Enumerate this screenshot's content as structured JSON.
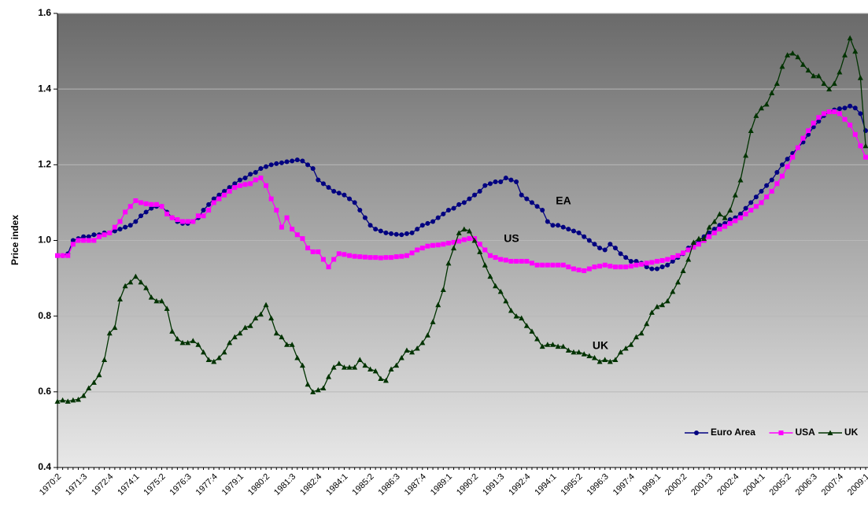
{
  "chart_data": {
    "type": "line",
    "y_label": "Price index",
    "annotations": [
      "EA",
      "US",
      "UK"
    ],
    "categories": [
      "1970:2",
      null,
      null,
      null,
      null,
      "1971:3",
      null,
      null,
      null,
      null,
      "1972:4",
      null,
      null,
      null,
      null,
      "1974:1",
      null,
      null,
      null,
      null,
      "1975:2",
      null,
      null,
      null,
      null,
      "1976:3",
      null,
      null,
      null,
      null,
      "1977:4",
      null,
      null,
      null,
      null,
      "1979:1",
      null,
      null,
      null,
      null,
      "1980:2",
      null,
      null,
      null,
      null,
      "1981:3",
      null,
      null,
      null,
      null,
      "1982:4",
      null,
      null,
      null,
      null,
      "1984:1",
      null,
      null,
      null,
      null,
      "1985:2",
      null,
      null,
      null,
      null,
      "1986:3",
      null,
      null,
      null,
      null,
      "1987:4",
      null,
      null,
      null,
      null,
      "1989:1",
      null,
      null,
      null,
      null,
      "1990:2",
      null,
      null,
      null,
      null,
      "1991:3",
      null,
      null,
      null,
      null,
      "1992:4",
      null,
      null,
      null,
      null,
      "1994:1",
      null,
      null,
      null,
      null,
      "1995:2",
      null,
      null,
      null,
      null,
      "1996:3",
      null,
      null,
      null,
      null,
      "1997:4",
      null,
      null,
      null,
      null,
      "1999:1",
      null,
      null,
      null,
      null,
      "2000:2",
      null,
      null,
      null,
      null,
      "2001:3",
      null,
      null,
      null,
      null,
      "2002:4",
      null,
      null,
      null,
      null,
      "2004:1",
      null,
      null,
      null,
      null,
      "2005:2",
      null,
      null,
      null,
      null,
      "2006:3",
      null,
      null,
      null,
      null,
      "2007:4",
      null,
      null,
      null,
      null,
      "2009:1"
    ],
    "series": [
      {
        "name": "Euro Area",
        "color": "#000080",
        "marker": "circle",
        "values": [
          0.96,
          0.96,
          0.965,
          1.0,
          1.005,
          1.01,
          1.01,
          1.015,
          1.015,
          1.02,
          1.02,
          1.025,
          1.03,
          1.035,
          1.04,
          1.05,
          1.065,
          1.075,
          1.085,
          1.09,
          1.09,
          1.075,
          1.06,
          1.05,
          1.045,
          1.045,
          1.05,
          1.06,
          1.08,
          1.095,
          1.11,
          1.12,
          1.13,
          1.14,
          1.15,
          1.16,
          1.165,
          1.175,
          1.18,
          1.19,
          1.195,
          1.2,
          1.203,
          1.205,
          1.208,
          1.21,
          1.213,
          1.21,
          1.2,
          1.19,
          1.16,
          1.15,
          1.14,
          1.13,
          1.125,
          1.12,
          1.11,
          1.1,
          1.08,
          1.06,
          1.04,
          1.03,
          1.025,
          1.02,
          1.018,
          1.016,
          1.015,
          1.018,
          1.02,
          1.03,
          1.04,
          1.045,
          1.05,
          1.06,
          1.07,
          1.08,
          1.085,
          1.095,
          1.1,
          1.11,
          1.12,
          1.13,
          1.145,
          1.15,
          1.155,
          1.155,
          1.165,
          1.16,
          1.155,
          1.12,
          1.11,
          1.1,
          1.09,
          1.08,
          1.05,
          1.04,
          1.04,
          1.035,
          1.03,
          1.025,
          1.02,
          1.01,
          1.0,
          0.99,
          0.98,
          0.975,
          0.99,
          0.98,
          0.965,
          0.955,
          0.945,
          0.945,
          0.94,
          0.93,
          0.925,
          0.925,
          0.93,
          0.935,
          0.945,
          0.955,
          0.965,
          0.98,
          0.99,
          1.0,
          1.01,
          1.02,
          1.03,
          1.04,
          1.045,
          1.055,
          1.06,
          1.07,
          1.085,
          1.1,
          1.115,
          1.13,
          1.145,
          1.16,
          1.18,
          1.2,
          1.215,
          1.23,
          1.245,
          1.26,
          1.28,
          1.3,
          1.315,
          1.33,
          1.34,
          1.345,
          1.348,
          1.35,
          1.355,
          1.35,
          1.335,
          1.29
        ]
      },
      {
        "name": "USA",
        "color": "#ff00ff",
        "marker": "square",
        "values": [
          0.96,
          0.96,
          0.96,
          0.99,
          1.0,
          1.0,
          1.0,
          1.0,
          1.01,
          1.015,
          1.02,
          1.035,
          1.05,
          1.075,
          1.09,
          1.105,
          1.1,
          1.097,
          1.095,
          1.095,
          1.09,
          1.07,
          1.06,
          1.055,
          1.05,
          1.05,
          1.05,
          1.065,
          1.065,
          1.08,
          1.1,
          1.11,
          1.12,
          1.13,
          1.14,
          1.145,
          1.148,
          1.15,
          1.16,
          1.165,
          1.145,
          1.11,
          1.08,
          1.035,
          1.06,
          1.03,
          1.015,
          1.005,
          0.98,
          0.97,
          0.97,
          0.95,
          0.93,
          0.95,
          0.965,
          0.963,
          0.96,
          0.958,
          0.957,
          0.956,
          0.955,
          0.955,
          0.954,
          0.955,
          0.955,
          0.957,
          0.958,
          0.96,
          0.967,
          0.975,
          0.98,
          0.985,
          0.987,
          0.988,
          0.99,
          0.993,
          0.995,
          0.998,
          1.002,
          1.005,
          1.005,
          0.99,
          0.975,
          0.96,
          0.955,
          0.95,
          0.948,
          0.945,
          0.945,
          0.945,
          0.945,
          0.94,
          0.935,
          0.935,
          0.935,
          0.935,
          0.935,
          0.935,
          0.93,
          0.925,
          0.922,
          0.92,
          0.925,
          0.93,
          0.932,
          0.935,
          0.932,
          0.93,
          0.93,
          0.93,
          0.932,
          0.935,
          0.937,
          0.94,
          0.942,
          0.945,
          0.947,
          0.95,
          0.955,
          0.96,
          0.967,
          0.975,
          0.982,
          0.99,
          1.0,
          1.01,
          1.02,
          1.03,
          1.037,
          1.045,
          1.052,
          1.06,
          1.07,
          1.08,
          1.09,
          1.1,
          1.115,
          1.13,
          1.15,
          1.17,
          1.195,
          1.22,
          1.245,
          1.27,
          1.29,
          1.31,
          1.325,
          1.335,
          1.34,
          1.34,
          1.335,
          1.32,
          1.305,
          1.28,
          1.25,
          1.22
        ]
      },
      {
        "name": "UK",
        "color": "#003300",
        "marker": "triangle",
        "values": [
          0.575,
          0.578,
          0.575,
          0.578,
          0.58,
          0.59,
          0.61,
          0.625,
          0.645,
          0.685,
          0.755,
          0.77,
          0.845,
          0.88,
          0.89,
          0.905,
          0.89,
          0.875,
          0.85,
          0.84,
          0.84,
          0.82,
          0.76,
          0.74,
          0.73,
          0.73,
          0.735,
          0.725,
          0.705,
          0.685,
          0.68,
          0.69,
          0.705,
          0.73,
          0.745,
          0.755,
          0.77,
          0.775,
          0.795,
          0.805,
          0.83,
          0.795,
          0.755,
          0.745,
          0.725,
          0.725,
          0.69,
          0.67,
          0.62,
          0.6,
          0.605,
          0.61,
          0.64,
          0.665,
          0.675,
          0.665,
          0.665,
          0.665,
          0.685,
          0.67,
          0.66,
          0.655,
          0.635,
          0.63,
          0.66,
          0.67,
          0.69,
          0.71,
          0.705,
          0.715,
          0.73,
          0.75,
          0.785,
          0.83,
          0.87,
          0.94,
          0.98,
          1.02,
          1.03,
          1.025,
          1.0,
          0.97,
          0.935,
          0.905,
          0.88,
          0.865,
          0.84,
          0.815,
          0.8,
          0.795,
          0.775,
          0.76,
          0.74,
          0.72,
          0.725,
          0.725,
          0.72,
          0.72,
          0.71,
          0.705,
          0.705,
          0.7,
          0.695,
          0.69,
          0.68,
          0.685,
          0.68,
          0.685,
          0.705,
          0.715,
          0.725,
          0.745,
          0.755,
          0.78,
          0.81,
          0.825,
          0.83,
          0.84,
          0.865,
          0.89,
          0.92,
          0.95,
          0.995,
          1.005,
          1.005,
          1.035,
          1.05,
          1.07,
          1.06,
          1.08,
          1.12,
          1.16,
          1.225,
          1.29,
          1.33,
          1.35,
          1.36,
          1.39,
          1.415,
          1.46,
          1.49,
          1.495,
          1.485,
          1.465,
          1.45,
          1.435,
          1.435,
          1.415,
          1.4,
          1.415,
          1.445,
          1.49,
          1.535,
          1.5,
          1.43,
          1.25
        ]
      }
    ],
    "ylim": [
      0.4,
      1.6
    ],
    "yticks": [
      0.4,
      0.6,
      0.8,
      {
        "value": 1,
        "label": "1.0"
      },
      1.2,
      1.4,
      1.6
    ],
    "grid": true,
    "legend": "bottom-right"
  }
}
